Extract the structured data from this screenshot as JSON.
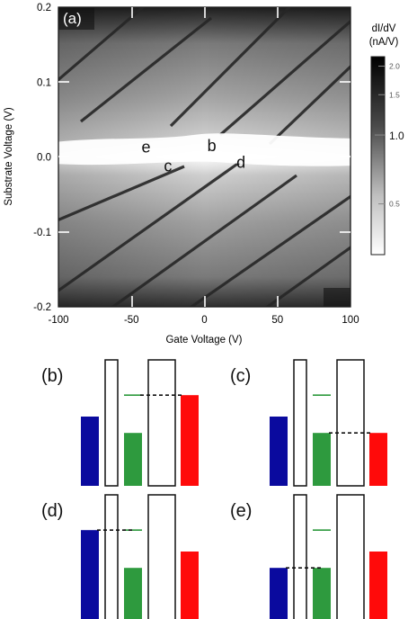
{
  "chart_data": [
    {
      "type": "heatmap",
      "panel_label": "(a)",
      "xlabel": "Gate Voltage (V)",
      "ylabel": "Substrate Voltage (V)",
      "xlim": [
        -100,
        100
      ],
      "ylim": [
        -0.2,
        0.2
      ],
      "xticks": [
        -100,
        -50,
        0,
        50,
        100
      ],
      "xtick_labels": [
        "-100",
        "-50",
        "0",
        "50",
        "100"
      ],
      "yticks": [
        -0.2,
        -0.1,
        0.0,
        0.1,
        0.2
      ],
      "ytick_labels": [
        "-0.2",
        "-0.1",
        "0.0",
        "0.1",
        "0.2"
      ],
      "colorbar": {
        "label_line1": "dI/dV",
        "label_line2": "(nA/V)",
        "scale": "log",
        "range": [
          0.3,
          2.2
        ],
        "ticks": [
          0.5,
          1.0,
          1.5,
          2.0
        ],
        "tick_labels": [
          "0.5",
          "1.0",
          "1.5",
          "2.0"
        ],
        "colormap": "white-to-black"
      },
      "annotations": [
        {
          "text": "e",
          "x": -40,
          "y": 0.013
        },
        {
          "text": "b",
          "x": 5,
          "y": 0.015
        },
        {
          "text": "c",
          "x": -25,
          "y": -0.012
        },
        {
          "text": "d",
          "x": 25,
          "y": -0.007
        }
      ]
    },
    {
      "type": "bar",
      "panels": [
        {
          "label": "(b)",
          "values": [
            0.55,
            0.42,
            0.72
          ],
          "dashed_from": 1,
          "dashed_level": 0.72
        },
        {
          "label": "(c)",
          "values": [
            0.55,
            0.42,
            0.42
          ],
          "dashed_from": 1,
          "dashed_level": 0.42
        },
        {
          "label": "(d)",
          "values": [
            0.72,
            0.42,
            0.55
          ],
          "dashed_from": 0,
          "dashed_level": 0.72
        },
        {
          "label": "(e)",
          "values": [
            0.42,
            0.42,
            0.55
          ],
          "dashed_from": 0,
          "dashed_level": 0.42
        }
      ],
      "bar_colors": [
        "#0a0a9e",
        "#2e9a3e",
        "#ff0a0a"
      ],
      "dot_level_fraction": 0.72
    }
  ],
  "colors": {
    "background": "#ffffff",
    "text": "#1a1a1a",
    "blue": "#0a0a9e",
    "green": "#2e9a3e",
    "red": "#ff0a0a"
  }
}
